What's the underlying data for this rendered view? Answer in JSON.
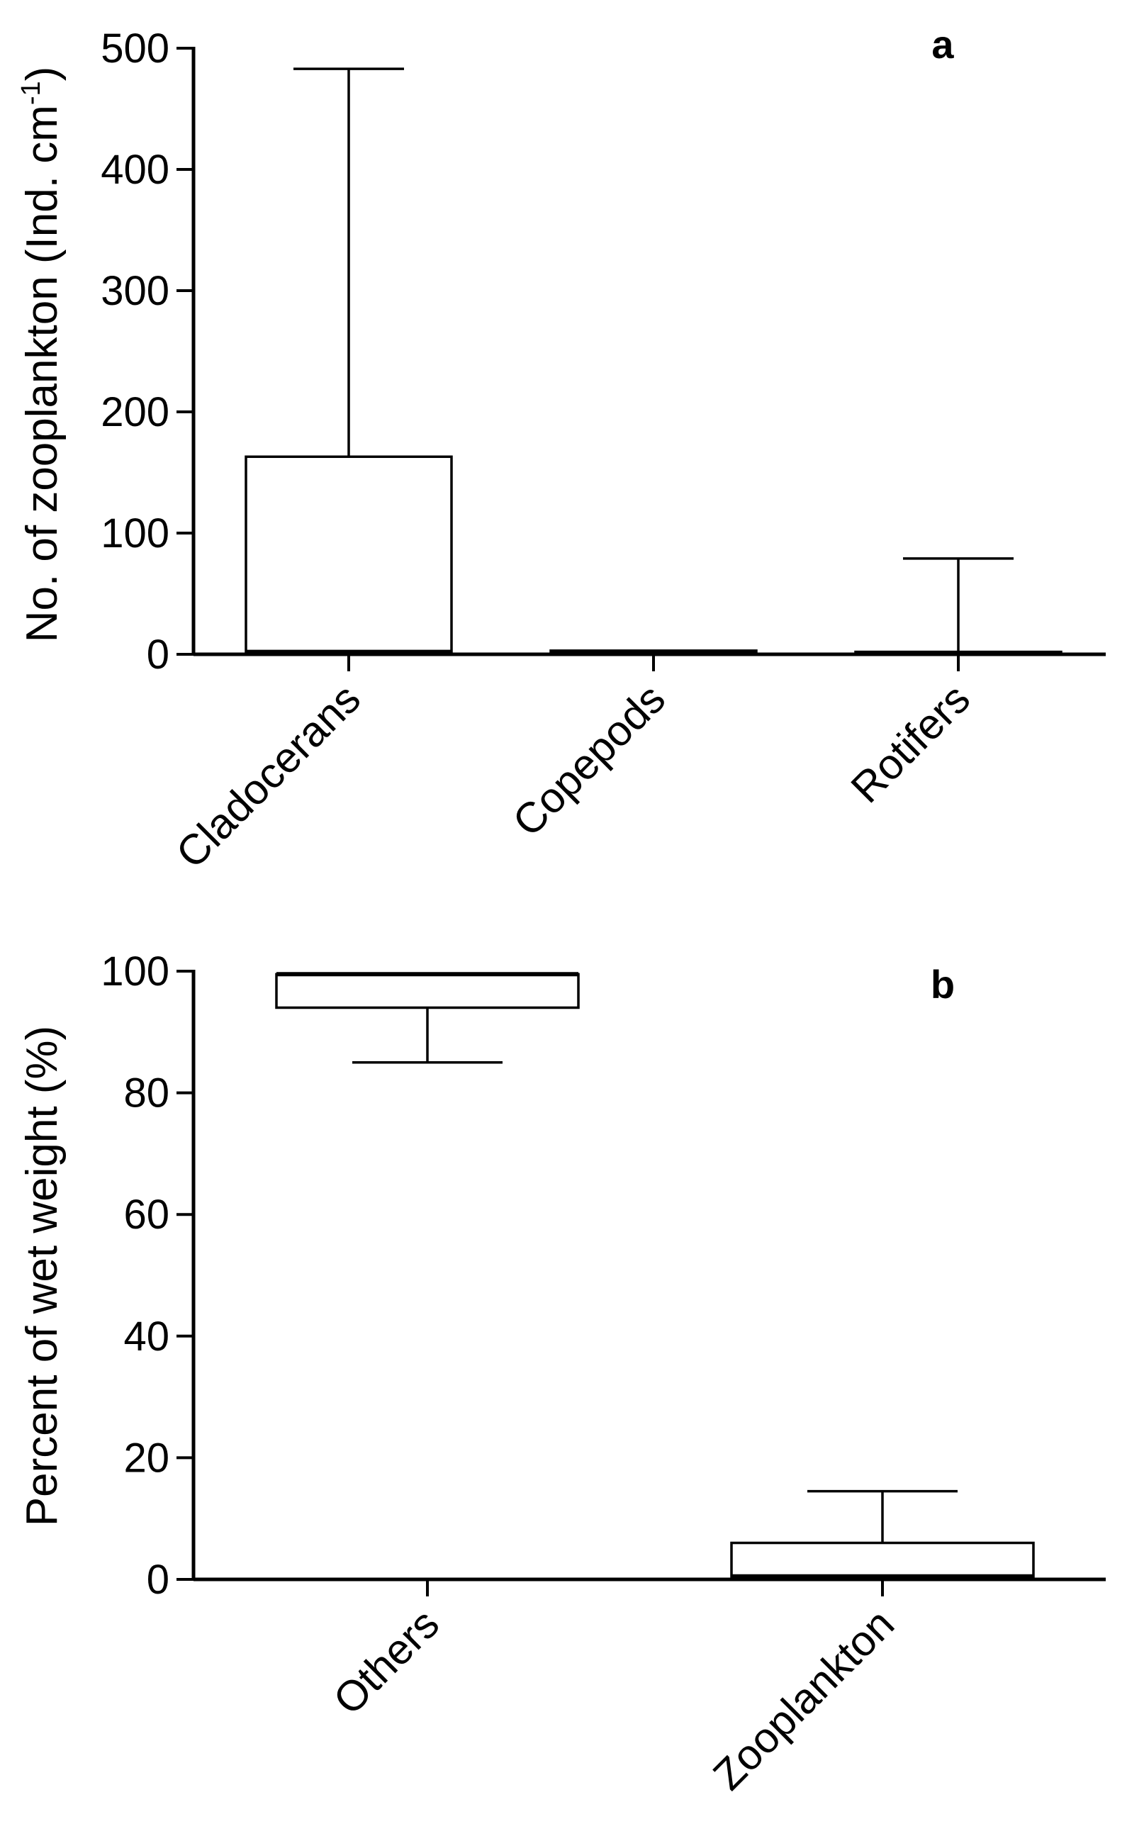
{
  "chart_data": [
    {
      "panel": "a",
      "type": "box",
      "ylabel": "No. of zooplankton (Ind. cm",
      "ylabel_superscript": "-1",
      "ylabel_close": ")",
      "ylim": [
        0,
        500
      ],
      "yticks": [
        "0",
        "100",
        "200",
        "300",
        "400",
        "500"
      ],
      "categories": [
        "Cladocerans",
        "Copepods",
        "Rotifers"
      ],
      "boxes": [
        {
          "min": 0,
          "q1": 2,
          "median": 2,
          "q3": 163,
          "max": 483
        },
        {
          "min": 0,
          "q1": 0,
          "median": 1,
          "q3": 3,
          "max": 3
        },
        {
          "min": 0,
          "q1": 0,
          "median": 1,
          "q3": 2,
          "max": 79
        }
      ]
    },
    {
      "panel": "b",
      "type": "box",
      "ylabel": "Percent of wet weight (%)",
      "ylim": [
        0,
        100
      ],
      "yticks": [
        "0",
        "20",
        "40",
        "60",
        "80",
        "100"
      ],
      "categories": [
        "Others",
        "Zooplankton"
      ],
      "boxes": [
        {
          "min": 85,
          "q1": 94,
          "median": 99.5,
          "q3": 99.5,
          "max": 99.5
        },
        {
          "min": 0,
          "q1": 0.3,
          "median": 0.5,
          "q3": 6,
          "max": 14.5
        }
      ]
    }
  ]
}
